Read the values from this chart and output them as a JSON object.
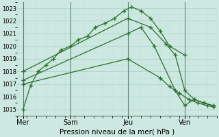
{
  "xlabel": "Pression niveau de la mer( hPa )",
  "background_color": "#cce8e0",
  "grid_color_major": "#aacccc",
  "grid_color_minor": "#c0dddd",
  "line_color": "#2d6e2d",
  "ylim": [
    1014.5,
    1023.5
  ],
  "xlim": [
    0,
    10.5
  ],
  "yticks": [
    1015,
    1016,
    1017,
    1018,
    1019,
    1020,
    1021,
    1022,
    1023
  ],
  "xtick_labels": [
    "Mer",
    "Sam",
    "Jeu",
    "Ven"
  ],
  "xtick_positions": [
    0.3,
    2.8,
    5.8,
    8.8
  ],
  "vlines": [
    0.3,
    2.8,
    5.8,
    8.8
  ],
  "lines": [
    {
      "x": [
        0.3,
        0.7,
        1.1,
        1.5,
        1.9,
        2.3,
        2.8,
        3.2,
        3.7,
        4.1,
        4.6,
        5.1,
        5.6,
        6.0,
        6.5,
        7.0,
        7.5,
        8.0,
        8.8
      ],
      "y": [
        1015.0,
        1016.9,
        1018.0,
        1018.5,
        1019.0,
        1019.7,
        1020.0,
        1020.5,
        1020.8,
        1021.5,
        1021.8,
        1022.2,
        1022.8,
        1023.1,
        1022.8,
        1022.2,
        1021.2,
        1020.0,
        1019.3
      ]
    },
    {
      "x": [
        0.3,
        5.8,
        7.0,
        7.8,
        8.3,
        8.8,
        9.3,
        9.8,
        10.3
      ],
      "y": [
        1018.0,
        1022.2,
        1021.5,
        1020.2,
        1019.3,
        1016.5,
        1015.8,
        1015.5,
        1015.3
      ]
    },
    {
      "x": [
        0.3,
        5.8,
        6.5,
        7.2,
        8.3,
        8.8,
        9.3,
        9.8,
        10.3
      ],
      "y": [
        1017.3,
        1021.0,
        1021.5,
        1020.0,
        1016.5,
        1015.3,
        1015.8,
        1015.5,
        1015.3
      ]
    },
    {
      "x": [
        0.3,
        5.8,
        7.5,
        8.0,
        8.5,
        9.0,
        9.5,
        10.0,
        10.3
      ],
      "y": [
        1017.0,
        1019.0,
        1017.5,
        1016.8,
        1016.3,
        1015.8,
        1015.5,
        1015.3,
        1015.2
      ]
    }
  ]
}
